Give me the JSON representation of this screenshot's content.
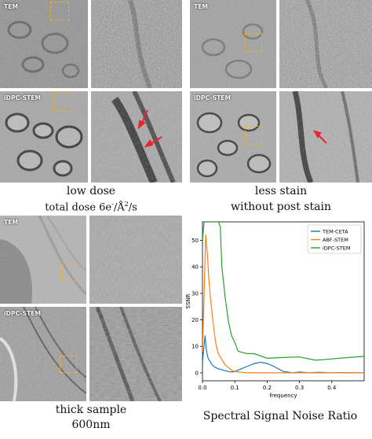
{
  "panels": {
    "low_dose": {
      "tiles": {
        "tem": "TEM",
        "idpc": "iDPC-STEM"
      },
      "caption_line1": "low dose",
      "caption_line2": "total dose 6e",
      "caption_sup1": "-",
      "caption_mid": "/Å",
      "caption_sup2": "2",
      "caption_end": "/s"
    },
    "less_stain": {
      "tiles": {
        "tem": "TEM",
        "idpc": "iDPC-STEM"
      },
      "caption_line1": "less stain",
      "caption_line2": "without post stain"
    },
    "thick_sample": {
      "tiles": {
        "tem": "TEM",
        "idpc": "iDPC-STEM"
      },
      "caption_line1": "thick sample",
      "caption_line2": "600nm"
    }
  },
  "colors": {
    "highlight_box": "#f0b21f",
    "arrow": "#e8242c",
    "tem_ceta": "#1f77b4",
    "abf_stem": "#ff7f0e",
    "idpc_stem": "#2ca02c"
  },
  "chart_title": "Spectral Signal Noise Ratio",
  "chart_data": {
    "type": "line",
    "title": "Spectral Signal Noise Ratio",
    "xlabel": "frequency",
    "ylabel": "SSNR",
    "xlim": [
      0,
      0.5
    ],
    "ylim": [
      -3,
      57
    ],
    "xticks": [
      0.0,
      0.1,
      0.2,
      0.3,
      0.4
    ],
    "yticks": [
      0,
      10,
      20,
      30,
      40,
      50
    ],
    "legend": "top-right",
    "series": [
      {
        "name": "TEM-CETA",
        "color": "#1f77b4",
        "x": [
          0.0,
          0.004,
          0.008,
          0.012,
          0.016,
          0.02,
          0.025,
          0.03,
          0.035,
          0.04,
          0.05,
          0.06,
          0.07,
          0.08,
          0.09,
          0.1,
          0.12,
          0.14,
          0.16,
          0.18,
          0.2,
          0.22,
          0.25,
          0.28,
          0.3,
          0.33,
          0.36,
          0.4,
          0.44,
          0.48,
          0.5
        ],
        "y": [
          4,
          9,
          14,
          9,
          6,
          5,
          4,
          3,
          2.5,
          2,
          1.5,
          1.2,
          0.8,
          0.5,
          0.3,
          0.5,
          1.5,
          2.5,
          3.5,
          4,
          3.5,
          2.5,
          0.5,
          0,
          0.3,
          0,
          0.2,
          0,
          0.1,
          0,
          0
        ]
      },
      {
        "name": "ABF-STEM",
        "color": "#ff7f0e",
        "x": [
          0.0,
          0.005,
          0.01,
          0.015,
          0.02,
          0.025,
          0.03,
          0.035,
          0.04,
          0.045,
          0.05,
          0.06,
          0.07,
          0.08,
          0.09,
          0.1,
          0.12,
          0.14,
          0.16,
          0.2,
          0.25,
          0.3,
          0.35,
          0.4,
          0.45,
          0.5
        ],
        "y": [
          8,
          30,
          52,
          45,
          35,
          28,
          22,
          17,
          12,
          9,
          7,
          5,
          3,
          2,
          1,
          0.5,
          0.2,
          0,
          0,
          0,
          0,
          0,
          0,
          0,
          0,
          0
        ]
      },
      {
        "name": "iDPC-STEM",
        "color": "#2ca02c",
        "x": [
          0.0,
          0.005,
          0.01,
          0.015,
          0.02,
          0.03,
          0.04,
          0.05,
          0.055,
          0.06,
          0.07,
          0.08,
          0.09,
          0.1,
          0.11,
          0.12,
          0.14,
          0.16,
          0.2,
          0.25,
          0.3,
          0.35,
          0.4,
          0.45,
          0.5
        ],
        "y": [
          50,
          57,
          57,
          57,
          57,
          57,
          57,
          57,
          55,
          40,
          28,
          20,
          14,
          11,
          9,
          8,
          7,
          6.5,
          6,
          5.8,
          5.5,
          5.5,
          5.5,
          5.5,
          5.5
        ]
      }
    ]
  }
}
